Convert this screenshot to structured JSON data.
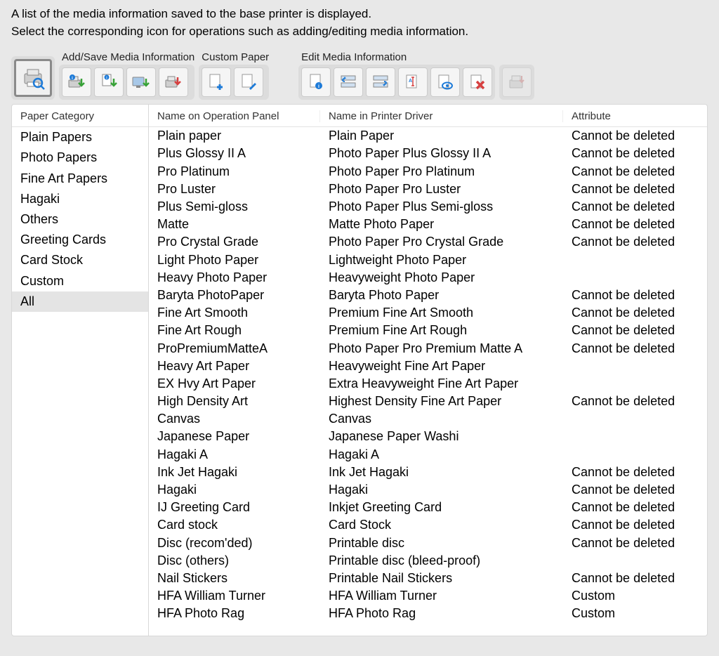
{
  "header": {
    "line1": "A list of the media information saved to the base printer is displayed.",
    "line2": "Select the corresponding icon for operations such as adding/editing media information."
  },
  "toolbar": {
    "labels": {
      "add_save": "Add/Save Media Information",
      "custom_paper": "Custom Paper",
      "edit": "Edit Media Information"
    },
    "icons": {
      "search_printer": "search-printer-icon",
      "info_green": "info-arrow-icon",
      "download_info": "download-info-icon",
      "display": "display-arrow-icon",
      "download_red": "download-red-icon",
      "add_paper": "add-paper-icon",
      "edit_paper": "edit-paper-icon",
      "paper_info": "paper-info-icon",
      "swap_left": "swap-left-icon",
      "swap_right": "swap-right-icon",
      "rename": "rename-icon",
      "view": "view-icon",
      "delete": "delete-icon",
      "export": "export-icon"
    }
  },
  "sidebar": {
    "header": "Paper Category",
    "items": [
      {
        "label": "Plain Papers",
        "selected": false
      },
      {
        "label": "Photo Papers",
        "selected": false
      },
      {
        "label": "Fine Art Papers",
        "selected": false
      },
      {
        "label": "Hagaki",
        "selected": false
      },
      {
        "label": "Others",
        "selected": false
      },
      {
        "label": "Greeting Cards",
        "selected": false
      },
      {
        "label": "Card Stock",
        "selected": false
      },
      {
        "label": "Custom",
        "selected": false
      },
      {
        "label": "All",
        "selected": true
      }
    ]
  },
  "table": {
    "columns": {
      "panel": "Name on Operation Panel",
      "driver": "Name in Printer Driver",
      "attribute": "Attribute"
    },
    "rows": [
      {
        "panel": "Plain paper",
        "driver": "Plain Paper",
        "attr": "Cannot be deleted"
      },
      {
        "panel": "Plus Glossy II A",
        "driver": "Photo Paper Plus Glossy II A",
        "attr": "Cannot be deleted"
      },
      {
        "panel": "Pro Platinum",
        "driver": "Photo Paper Pro Platinum",
        "attr": "Cannot be deleted"
      },
      {
        "panel": "Pro Luster",
        "driver": "Photo Paper Pro Luster",
        "attr": "Cannot be deleted"
      },
      {
        "panel": "Plus Semi-gloss",
        "driver": "Photo Paper Plus Semi-gloss",
        "attr": "Cannot be deleted"
      },
      {
        "panel": "Matte",
        "driver": "Matte Photo Paper",
        "attr": "Cannot be deleted"
      },
      {
        "panel": "Pro Crystal Grade",
        "driver": "Photo Paper Pro Crystal Grade",
        "attr": "Cannot be deleted"
      },
      {
        "panel": "Light Photo Paper",
        "driver": "Lightweight Photo Paper",
        "attr": ""
      },
      {
        "panel": "Heavy Photo Paper",
        "driver": "Heavyweight Photo Paper",
        "attr": ""
      },
      {
        "panel": "Baryta PhotoPaper",
        "driver": "Baryta Photo Paper",
        "attr": "Cannot be deleted"
      },
      {
        "panel": "Fine Art Smooth",
        "driver": "Premium Fine Art Smooth",
        "attr": "Cannot be deleted"
      },
      {
        "panel": "Fine Art Rough",
        "driver": "Premium Fine Art Rough",
        "attr": "Cannot be deleted"
      },
      {
        "panel": "ProPremiumMatteA",
        "driver": "Photo Paper Pro Premium Matte A",
        "attr": "Cannot be deleted"
      },
      {
        "panel": "Heavy Art Paper",
        "driver": "Heavyweight Fine Art Paper",
        "attr": ""
      },
      {
        "panel": "EX Hvy Art Paper",
        "driver": "Extra Heavyweight Fine Art Paper",
        "attr": ""
      },
      {
        "panel": "High Density Art",
        "driver": "Highest Density Fine Art Paper",
        "attr": "Cannot be deleted"
      },
      {
        "panel": "Canvas",
        "driver": "Canvas",
        "attr": ""
      },
      {
        "panel": "Japanese Paper",
        "driver": "Japanese Paper Washi",
        "attr": ""
      },
      {
        "panel": "Hagaki A",
        "driver": "Hagaki A",
        "attr": ""
      },
      {
        "panel": "Ink Jet Hagaki",
        "driver": "Ink Jet Hagaki",
        "attr": "Cannot be deleted"
      },
      {
        "panel": "Hagaki",
        "driver": "Hagaki",
        "attr": "Cannot be deleted"
      },
      {
        "panel": "IJ Greeting Card",
        "driver": "Inkjet Greeting Card",
        "attr": "Cannot be deleted"
      },
      {
        "panel": "Card stock",
        "driver": "Card Stock",
        "attr": "Cannot be deleted"
      },
      {
        "panel": "Disc (recom'ded)",
        "driver": "Printable disc",
        "attr": "Cannot be deleted"
      },
      {
        "panel": "Disc (others)",
        "driver": "Printable disc (bleed-proof)",
        "attr": ""
      },
      {
        "panel": "Nail Stickers",
        "driver": "Printable Nail Stickers",
        "attr": "Cannot be deleted"
      },
      {
        "panel": "HFA William Turner",
        "driver": "HFA William Turner",
        "attr": "Custom"
      },
      {
        "panel": "HFA Photo Rag",
        "driver": "HFA Photo Rag",
        "attr": "Custom"
      }
    ]
  },
  "colors": {
    "bg": "#e8e8e8",
    "panel_bg": "#ffffff",
    "group_bg": "#dcdcdc",
    "border": "#d8d8d8",
    "selected": "#e4e4e4",
    "blue": "#1e7bd8",
    "green": "#38a238",
    "red": "#d64040"
  }
}
